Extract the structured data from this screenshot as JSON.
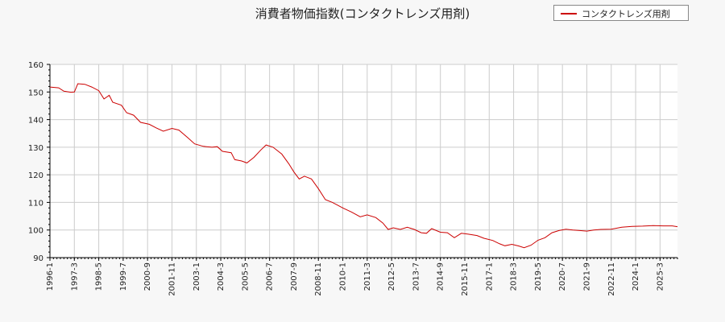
{
  "colors": {
    "series": "#cc0000",
    "grid": "#cccccc",
    "axis": "#000000",
    "background": "#f7f7f7"
  },
  "chart_data": {
    "type": "line",
    "title": "消費者物価指数(コンタクトレンズ用剤)",
    "xlabel": "",
    "ylabel": "",
    "ylim": [
      90,
      160
    ],
    "yticks": [
      90,
      100,
      110,
      120,
      130,
      140,
      150,
      160
    ],
    "xticks": [
      "1996-1",
      "1997-3",
      "1998-5",
      "1999-7",
      "2000-9",
      "2001-11",
      "2003-1",
      "2004-3",
      "2005-5",
      "2006-7",
      "2007-9",
      "2008-11",
      "2010-1",
      "2011-3",
      "2012-5",
      "2013-7",
      "2014-9",
      "2015-11",
      "2017-1",
      "2018-3",
      "2019-5",
      "2020-7",
      "2021-9",
      "2022-11",
      "2024-1",
      "2025-3"
    ],
    "x_range": [
      "1996-01",
      "2026-01"
    ],
    "grid": true,
    "legend": {
      "position": "top-right",
      "entries": [
        "コンタクトレンズ用剤"
      ]
    },
    "series": [
      {
        "name": "コンタクトレンズ用剤",
        "points": [
          [
            "1996-01",
            151.8
          ],
          [
            "1996-06",
            151.5
          ],
          [
            "1996-09",
            150.3
          ],
          [
            "1997-01",
            149.9
          ],
          [
            "1997-03",
            150.0
          ],
          [
            "1997-05",
            153.0
          ],
          [
            "1997-09",
            152.8
          ],
          [
            "1998-01",
            151.8
          ],
          [
            "1998-05",
            150.5
          ],
          [
            "1998-08",
            147.5
          ],
          [
            "1998-11",
            148.8
          ],
          [
            "1999-01",
            146.3
          ],
          [
            "1999-06",
            145.2
          ],
          [
            "1999-09",
            142.5
          ],
          [
            "2000-01",
            141.6
          ],
          [
            "2000-05",
            139.0
          ],
          [
            "2000-10",
            138.3
          ],
          [
            "2001-02",
            137.0
          ],
          [
            "2001-06",
            135.8
          ],
          [
            "2001-11",
            136.8
          ],
          [
            "2002-03",
            136.2
          ],
          [
            "2002-08",
            133.5
          ],
          [
            "2002-12",
            131.2
          ],
          [
            "2003-05",
            130.3
          ],
          [
            "2003-10",
            130.0
          ],
          [
            "2004-01",
            130.2
          ],
          [
            "2004-04",
            128.5
          ],
          [
            "2004-09",
            128.0
          ],
          [
            "2004-11",
            125.5
          ],
          [
            "2005-03",
            125.0
          ],
          [
            "2005-06",
            124.3
          ],
          [
            "2005-10",
            126.3
          ],
          [
            "2006-02",
            129.0
          ],
          [
            "2006-05",
            130.8
          ],
          [
            "2006-09",
            130.0
          ],
          [
            "2007-02",
            127.5
          ],
          [
            "2007-06",
            124.0
          ],
          [
            "2007-09",
            121.0
          ],
          [
            "2007-12",
            118.5
          ],
          [
            "2008-03",
            119.5
          ],
          [
            "2008-07",
            118.5
          ],
          [
            "2008-11",
            115.0
          ],
          [
            "2009-03",
            111.0
          ],
          [
            "2009-07",
            110.0
          ],
          [
            "2010-01",
            108.0
          ],
          [
            "2010-06",
            106.5
          ],
          [
            "2010-11",
            104.8
          ],
          [
            "2011-03",
            105.5
          ],
          [
            "2011-08",
            104.5
          ],
          [
            "2011-12",
            102.5
          ],
          [
            "2012-03",
            100.2
          ],
          [
            "2012-06",
            100.8
          ],
          [
            "2012-10",
            100.2
          ],
          [
            "2013-02",
            101.0
          ],
          [
            "2013-06",
            100.2
          ],
          [
            "2013-10",
            99.0
          ],
          [
            "2014-01",
            98.8
          ],
          [
            "2014-04",
            100.5
          ],
          [
            "2014-09",
            99.2
          ],
          [
            "2015-01",
            99.0
          ],
          [
            "2015-05",
            97.2
          ],
          [
            "2015-09",
            98.8
          ],
          [
            "2016-01",
            98.5
          ],
          [
            "2016-06",
            98.0
          ],
          [
            "2016-10",
            97.0
          ],
          [
            "2017-03",
            96.2
          ],
          [
            "2017-07",
            95.0
          ],
          [
            "2017-10",
            94.3
          ],
          [
            "2018-02",
            94.8
          ],
          [
            "2018-06",
            94.2
          ],
          [
            "2018-09",
            93.6
          ],
          [
            "2019-01",
            94.5
          ],
          [
            "2019-05",
            96.3
          ],
          [
            "2019-09",
            97.2
          ],
          [
            "2020-01",
            99.0
          ],
          [
            "2020-05",
            99.8
          ],
          [
            "2020-09",
            100.3
          ],
          [
            "2021-01",
            100.0
          ],
          [
            "2021-05",
            99.8
          ],
          [
            "2021-09",
            99.6
          ],
          [
            "2022-01",
            100.0
          ],
          [
            "2022-05",
            100.2
          ],
          [
            "2022-11",
            100.3
          ],
          [
            "2023-05",
            101.0
          ],
          [
            "2023-11",
            101.3
          ],
          [
            "2024-05",
            101.4
          ],
          [
            "2024-11",
            101.6
          ],
          [
            "2025-05",
            101.5
          ],
          [
            "2025-10",
            101.5
          ],
          [
            "2026-01",
            101.2
          ]
        ]
      }
    ]
  }
}
